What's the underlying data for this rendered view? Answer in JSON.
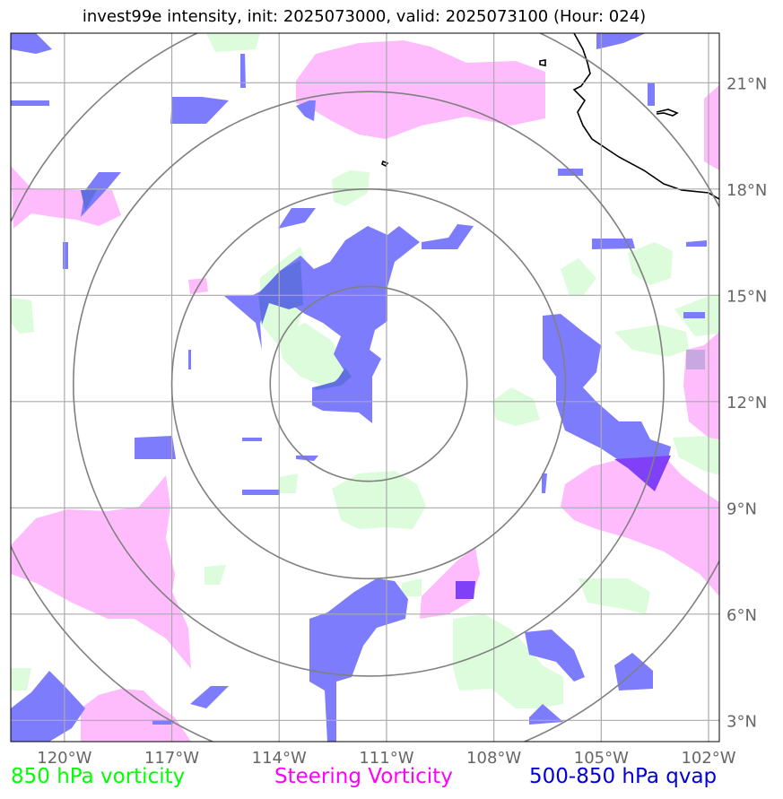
{
  "title": "invest99e intensity, init: 2025073000, valid: 2025073100 (Hour: 024)",
  "map": {
    "lon_range": [
      -121.5,
      -101.7
    ],
    "lat_range": [
      2.4,
      22.4
    ],
    "lon_ticks": [
      -120,
      -117,
      -114,
      -111,
      -108,
      -105,
      -102
    ],
    "lon_tick_labels": [
      "120°W",
      "117°W",
      "114°W",
      "111°W",
      "108°W",
      "105°W",
      "102°W"
    ],
    "lat_ticks": [
      3,
      6,
      9,
      12,
      15,
      18,
      21
    ],
    "lat_tick_labels": [
      "3°N",
      "6°N",
      "9°N",
      "12°N",
      "15°N",
      "18°N",
      "21°N"
    ],
    "center": {
      "lon": -111.5,
      "lat": 12.5
    },
    "ring_radii_deg": [
      2.75,
      5.5,
      8.25,
      11.0
    ],
    "gridlines": true,
    "coastline": true
  },
  "legend": [
    {
      "label": "850 hPa vorticity",
      "color": "#00ff00"
    },
    {
      "label": "Steering Vorticity",
      "color": "#ff00ff"
    },
    {
      "label": "500-850 hPa qvap",
      "color": "#0000dd"
    }
  ],
  "colors": {
    "vorticity_850": "#dcfcdc",
    "steering_vorticity": "#ffbcfc",
    "qvap": "#7c7cfc",
    "overlap": "#6070e0",
    "grid": "#aaaaaa",
    "rings": "#808080"
  }
}
